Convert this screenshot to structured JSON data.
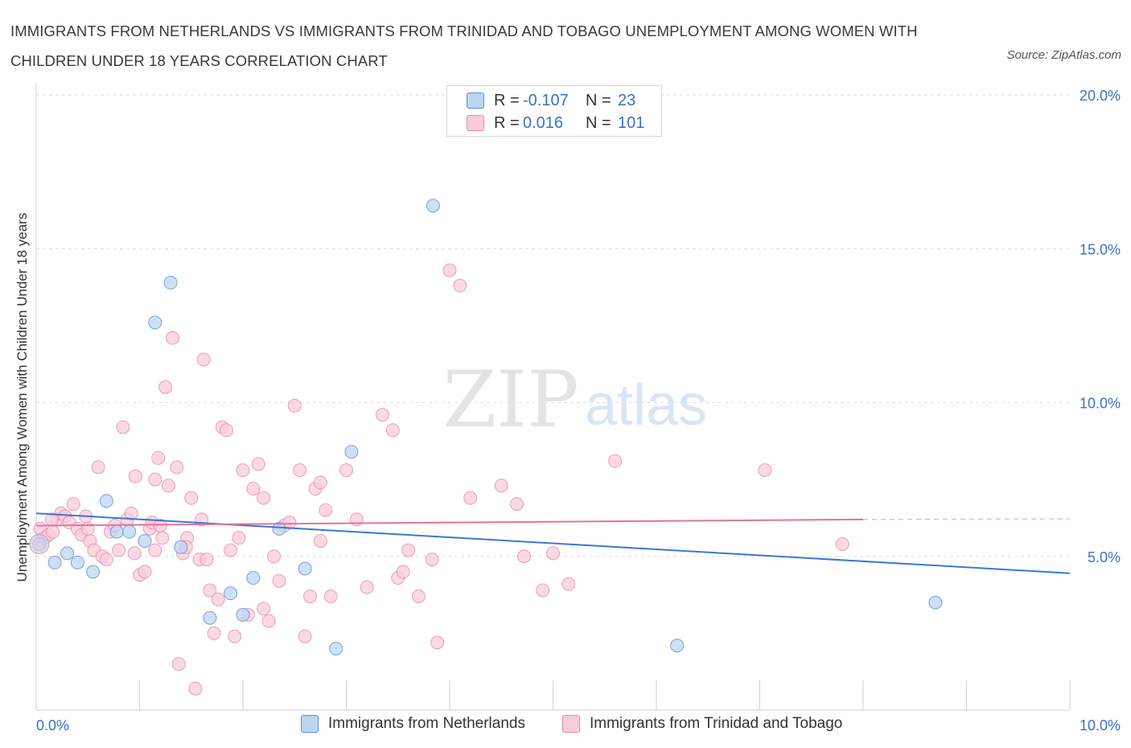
{
  "title": "IMMIGRANTS FROM NETHERLANDS VS IMMIGRANTS FROM TRINIDAD AND TOBAGO UNEMPLOYMENT AMONG WOMEN WITH CHILDREN UNDER 18 YEARS CORRELATION CHART",
  "source": "Source: ZipAtlas.com",
  "watermark": {
    "zip": "ZIP",
    "atlas": "atlas"
  },
  "legend": {
    "rows": [
      {
        "r_label": "R =",
        "r_value": "-0.107",
        "n_label": "N =",
        "n_value": "23",
        "color": "#a9c8f0",
        "border": "#5b8fd6"
      },
      {
        "r_label": "R =",
        "r_value": "0.016",
        "n_label": "N =",
        "n_value": "101",
        "color": "#f7c3d3",
        "border": "#e68aa7"
      }
    ]
  },
  "colors": {
    "netherlands_fill": "#bcd5f3",
    "netherlands_stroke": "#5b8fd6",
    "netherlands_line": "#3a78d4",
    "trinidad_fill": "#f8ccd9",
    "trinidad_stroke": "#e68aa7",
    "trinidad_line": "#e8729a",
    "axis_label": "#3b72c4",
    "grid": "#dddddd"
  },
  "chart_data": {
    "type": "scatter",
    "title": "IMMIGRANTS FROM NETHERLANDS VS IMMIGRANTS FROM TRINIDAD AND TOBAGO UNEMPLOYMENT AMONG WOMEN WITH CHILDREN UNDER 18 YEARS CORRELATION CHART",
    "xlabel": "",
    "ylabel": "Unemployment Among Women with Children Under 18 years",
    "xlim": [
      0,
      10
    ],
    "ylim": [
      0,
      20
    ],
    "x_tick_labels": [
      "0.0%",
      "10.0%"
    ],
    "y_ticks": [
      5,
      10,
      15,
      20
    ],
    "y_tick_labels": [
      "5.0%",
      "10.0%",
      "15.0%",
      "20.0%"
    ],
    "grid": true,
    "legend_position": "top-center",
    "series": [
      {
        "name": "Immigrants from Netherlands",
        "color": "#5b8fd6",
        "trend": {
          "x": [
            0,
            10
          ],
          "y": [
            6.4,
            4.45
          ]
        },
        "points": [
          [
            0.03,
            5.4
          ],
          [
            0.18,
            4.8
          ],
          [
            0.3,
            5.1
          ],
          [
            0.4,
            4.8
          ],
          [
            0.55,
            4.5
          ],
          [
            0.68,
            6.8
          ],
          [
            0.78,
            5.8
          ],
          [
            0.9,
            5.8
          ],
          [
            1.05,
            5.5
          ],
          [
            1.15,
            12.6
          ],
          [
            1.3,
            13.9
          ],
          [
            1.4,
            5.3
          ],
          [
            1.68,
            3.0
          ],
          [
            1.88,
            3.8
          ],
          [
            2.0,
            3.1
          ],
          [
            2.1,
            4.3
          ],
          [
            2.35,
            5.9
          ],
          [
            2.6,
            4.6
          ],
          [
            2.9,
            2.0
          ],
          [
            3.05,
            8.4
          ],
          [
            3.84,
            16.4
          ],
          [
            6.2,
            2.1
          ],
          [
            8.7,
            3.5
          ]
        ]
      },
      {
        "name": "Immigrants from Trinidad and Tobago",
        "color": "#e68aa7",
        "trend": {
          "x": [
            0,
            8.0
          ],
          "y": [
            6.0,
            6.2
          ]
        },
        "points": [
          [
            0.04,
            5.9
          ],
          [
            0.08,
            5.6
          ],
          [
            0.12,
            5.7
          ],
          [
            0.16,
            5.8
          ],
          [
            0.2,
            6.2
          ],
          [
            0.24,
            6.4
          ],
          [
            0.28,
            6.3
          ],
          [
            0.32,
            6.1
          ],
          [
            0.36,
            6.7
          ],
          [
            0.4,
            5.9
          ],
          [
            0.44,
            5.7
          ],
          [
            0.48,
            6.3
          ],
          [
            0.52,
            5.5
          ],
          [
            0.56,
            5.2
          ],
          [
            0.6,
            7.9
          ],
          [
            0.64,
            5.0
          ],
          [
            0.68,
            4.9
          ],
          [
            0.72,
            5.8
          ],
          [
            0.76,
            6.0
          ],
          [
            0.8,
            5.2
          ],
          [
            0.84,
            9.2
          ],
          [
            0.88,
            6.2
          ],
          [
            0.92,
            6.4
          ],
          [
            0.96,
            7.6
          ],
          [
            1.0,
            4.4
          ],
          [
            1.05,
            4.5
          ],
          [
            1.1,
            5.9
          ],
          [
            1.12,
            6.1
          ],
          [
            1.15,
            7.5
          ],
          [
            1.18,
            8.2
          ],
          [
            1.22,
            5.6
          ],
          [
            1.25,
            10.5
          ],
          [
            1.28,
            7.3
          ],
          [
            1.32,
            12.1
          ],
          [
            1.36,
            7.9
          ],
          [
            1.38,
            1.5
          ],
          [
            1.42,
            5.1
          ],
          [
            1.46,
            5.6
          ],
          [
            1.5,
            6.9
          ],
          [
            1.54,
            0.7
          ],
          [
            1.58,
            4.9
          ],
          [
            1.62,
            11.4
          ],
          [
            1.65,
            4.9
          ],
          [
            1.68,
            3.9
          ],
          [
            1.72,
            2.5
          ],
          [
            1.76,
            3.6
          ],
          [
            1.8,
            9.2
          ],
          [
            1.84,
            9.1
          ],
          [
            1.88,
            5.2
          ],
          [
            1.92,
            2.4
          ],
          [
            1.96,
            5.6
          ],
          [
            2.0,
            7.8
          ],
          [
            2.05,
            3.1
          ],
          [
            2.1,
            7.2
          ],
          [
            2.15,
            8.0
          ],
          [
            2.2,
            6.9
          ],
          [
            2.25,
            2.9
          ],
          [
            2.3,
            5.0
          ],
          [
            2.35,
            4.2
          ],
          [
            2.4,
            6.0
          ],
          [
            2.45,
            6.1
          ],
          [
            2.5,
            9.9
          ],
          [
            2.55,
            7.8
          ],
          [
            2.6,
            2.4
          ],
          [
            2.65,
            3.7
          ],
          [
            2.7,
            7.2
          ],
          [
            2.75,
            7.4
          ],
          [
            2.8,
            6.5
          ],
          [
            2.85,
            3.7
          ],
          [
            3.0,
            7.8
          ],
          [
            3.2,
            4.0
          ],
          [
            3.35,
            9.6
          ],
          [
            3.45,
            9.1
          ],
          [
            3.5,
            4.3
          ],
          [
            3.55,
            4.5
          ],
          [
            3.6,
            5.2
          ],
          [
            3.7,
            3.7
          ],
          [
            3.83,
            4.9
          ],
          [
            3.88,
            2.2
          ],
          [
            4.0,
            14.3
          ],
          [
            4.1,
            13.8
          ],
          [
            4.2,
            6.9
          ],
          [
            4.5,
            7.3
          ],
          [
            4.65,
            6.7
          ],
          [
            4.72,
            5.0
          ],
          [
            4.9,
            3.9
          ],
          [
            5.0,
            5.1
          ],
          [
            5.15,
            4.1
          ],
          [
            5.6,
            8.1
          ],
          [
            7.05,
            7.8
          ],
          [
            7.8,
            5.4
          ],
          [
            1.2,
            6.0
          ],
          [
            0.5,
            5.9
          ],
          [
            0.15,
            6.2
          ],
          [
            1.45,
            5.3
          ],
          [
            2.2,
            3.3
          ],
          [
            0.95,
            5.1
          ],
          [
            3.1,
            6.2
          ],
          [
            1.6,
            6.2
          ],
          [
            2.75,
            5.5
          ],
          [
            1.15,
            5.2
          ]
        ]
      }
    ]
  },
  "bottom_legend": [
    {
      "label": "Immigrants from Netherlands",
      "color": "#bcd5f3",
      "border": "#5b8fd6"
    },
    {
      "label": "Immigrants from Trinidad and Tobago",
      "color": "#f8ccd9",
      "border": "#e68aa7"
    }
  ]
}
